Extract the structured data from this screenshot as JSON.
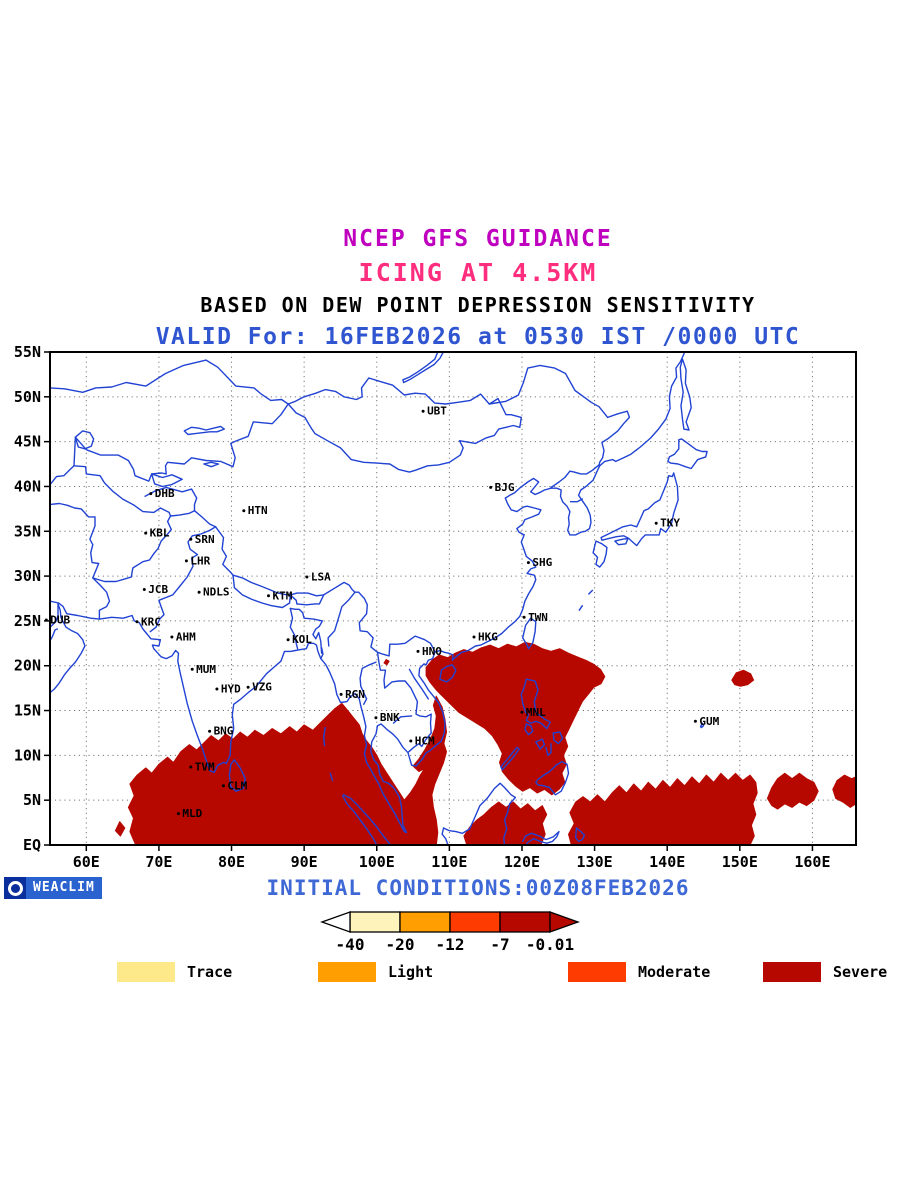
{
  "titles": {
    "line1": "NCEP GFS GUIDANCE",
    "line2": "ICING AT 4.5KM",
    "line3": "BASED ON DEW POINT DEPRESSION SENSITIVITY",
    "line4": "VALID For: 16FEB2026 at 0530 IST /0000 UTC"
  },
  "colors": {
    "title1": "#bf00bf",
    "title2": "#ff2d7e",
    "title3": "#000000",
    "title4": "#2f55d0",
    "initial": "#3d68d6",
    "coast": "#2143d4",
    "severe": "#b70800",
    "grid": "#777777",
    "frame": "#000000",
    "weaclim_icon_bg": "#0a2f9c",
    "weaclim_body_bg": "#2a62d0"
  },
  "map": {
    "lat_ticks": [
      {
        "label": "55N",
        "value": 55
      },
      {
        "label": "50N",
        "value": 50
      },
      {
        "label": "45N",
        "value": 45
      },
      {
        "label": "40N",
        "value": 40
      },
      {
        "label": "35N",
        "value": 35
      },
      {
        "label": "30N",
        "value": 30
      },
      {
        "label": "25N",
        "value": 25
      },
      {
        "label": "20N",
        "value": 20
      },
      {
        "label": "15N",
        "value": 15
      },
      {
        "label": "10N",
        "value": 10
      },
      {
        "label": "5N",
        "value": 5
      },
      {
        "label": "EQ",
        "value": 0
      }
    ],
    "lon_ticks": [
      {
        "label": "60E",
        "value": 60
      },
      {
        "label": "70E",
        "value": 70
      },
      {
        "label": "80E",
        "value": 80
      },
      {
        "label": "90E",
        "value": 90
      },
      {
        "label": "100E",
        "value": 100
      },
      {
        "label": "110E",
        "value": 110
      },
      {
        "label": "120E",
        "value": 120
      },
      {
        "label": "130E",
        "value": 130
      },
      {
        "label": "140E",
        "value": 140
      },
      {
        "label": "150E",
        "value": 150
      },
      {
        "label": "160E",
        "value": 160
      }
    ],
    "stations": [
      {
        "code": "UBT",
        "lon": 108.3,
        "lat": 48.4
      },
      {
        "code": "BJG",
        "lon": 117.6,
        "lat": 39.9
      },
      {
        "code": "TKY",
        "lon": 140.4,
        "lat": 35.9
      },
      {
        "code": "DHB",
        "lon": 70.8,
        "lat": 39.2
      },
      {
        "code": "HTN",
        "lon": 83.6,
        "lat": 37.3
      },
      {
        "code": "KBL",
        "lon": 70.1,
        "lat": 34.8
      },
      {
        "code": "SRN",
        "lon": 76.3,
        "lat": 34.1
      },
      {
        "code": "LHR",
        "lon": 75.7,
        "lat": 31.7
      },
      {
        "code": "SHG",
        "lon": 122.8,
        "lat": 31.5
      },
      {
        "code": "JCB",
        "lon": 69.9,
        "lat": 28.5
      },
      {
        "code": "NDLS",
        "lon": 77.9,
        "lat": 28.2
      },
      {
        "code": "KTM",
        "lon": 87.0,
        "lat": 27.8
      },
      {
        "code": "LSA",
        "lon": 92.3,
        "lat": 29.9
      },
      {
        "code": "DUB",
        "lon": 56.4,
        "lat": 25.1
      },
      {
        "code": "KRC",
        "lon": 68.9,
        "lat": 24.9
      },
      {
        "code": "TWN",
        "lon": 122.2,
        "lat": 25.4
      },
      {
        "code": "AHM",
        "lon": 73.7,
        "lat": 23.2
      },
      {
        "code": "KOL",
        "lon": 89.7,
        "lat": 22.9
      },
      {
        "code": "HKG",
        "lon": 115.3,
        "lat": 23.2
      },
      {
        "code": "HNO",
        "lon": 107.6,
        "lat": 21.6
      },
      {
        "code": "MUM",
        "lon": 76.5,
        "lat": 19.6
      },
      {
        "code": "HYD",
        "lon": 79.9,
        "lat": 17.4
      },
      {
        "code": "VZG",
        "lon": 84.2,
        "lat": 17.6
      },
      {
        "code": "RGN",
        "lon": 97.0,
        "lat": 16.8
      },
      {
        "code": "BNK",
        "lon": 101.8,
        "lat": 14.2
      },
      {
        "code": "MNL",
        "lon": 121.9,
        "lat": 14.8
      },
      {
        "code": "GUM",
        "lon": 145.8,
        "lat": 13.8
      },
      {
        "code": "HCM",
        "lon": 106.6,
        "lat": 11.6
      },
      {
        "code": "BNG",
        "lon": 78.9,
        "lat": 12.7
      },
      {
        "code": "TVM",
        "lon": 76.3,
        "lat": 8.7
      },
      {
        "code": "CLM",
        "lon": 80.8,
        "lat": 6.6
      },
      {
        "code": "MLD",
        "lon": 74.6,
        "lat": 3.5
      }
    ]
  },
  "colorbar": {
    "tick_labels": [
      "-40",
      "-20",
      "-12",
      "-7",
      "-0.01"
    ],
    "segment_colors": [
      "#fdf3bb",
      "#ff9e00",
      "#fe3b00",
      "#b70800"
    ]
  },
  "legend": [
    {
      "label": "Trace",
      "color": "#fde98a"
    },
    {
      "label": "Light",
      "color": "#ff9e00"
    },
    {
      "label": "Moderate",
      "color": "#fe3b00"
    },
    {
      "label": "Severe",
      "color": "#b70800"
    }
  ],
  "footer": {
    "logo_text": "WEACLIM",
    "initial_conditions": "INITIAL CONDITIONS:00Z08FEB2026"
  },
  "icing_regions": {
    "severe": [
      [
        [
          66.8,
          0
        ],
        [
          66,
          1.5
        ],
        [
          66.5,
          3
        ],
        [
          65.8,
          4.2
        ],
        [
          66.6,
          5.5
        ],
        [
          66,
          6.8
        ],
        [
          67,
          7.8
        ],
        [
          68.2,
          8.6
        ],
        [
          69,
          8
        ],
        [
          70,
          9
        ],
        [
          71.2,
          9.8
        ],
        [
          72,
          9.2
        ],
        [
          73,
          10.4
        ],
        [
          74.2,
          11.2
        ],
        [
          75.2,
          10.6
        ],
        [
          76.2,
          11.4
        ],
        [
          77.2,
          12.2
        ],
        [
          78.2,
          11.6
        ],
        [
          79.2,
          12.4
        ],
        [
          80.2,
          11.8
        ],
        [
          81.2,
          12.6
        ],
        [
          82.2,
          12
        ],
        [
          83.2,
          12.8
        ],
        [
          84.4,
          12.2
        ],
        [
          85.6,
          13
        ],
        [
          86.8,
          12.4
        ],
        [
          88,
          13.2
        ],
        [
          89,
          12.6
        ],
        [
          90,
          13.4
        ],
        [
          91.2,
          12.8
        ],
        [
          92.2,
          13.6
        ],
        [
          93.2,
          14.4
        ],
        [
          94.2,
          15.2
        ],
        [
          95.2,
          15.8
        ],
        [
          96,
          15
        ],
        [
          96.8,
          14.2
        ],
        [
          97.6,
          13.4
        ],
        [
          98,
          12.4
        ],
        [
          98.6,
          11.6
        ],
        [
          99.4,
          10.8
        ],
        [
          100,
          10
        ],
        [
          100.6,
          9
        ],
        [
          101.4,
          8
        ],
        [
          102.2,
          7
        ],
        [
          103,
          6
        ],
        [
          103.8,
          5
        ],
        [
          104.6,
          5.8
        ],
        [
          105.4,
          6.8
        ],
        [
          106,
          7.8
        ],
        [
          106.8,
          8.8
        ],
        [
          107.6,
          9.6
        ],
        [
          108.4,
          10.4
        ],
        [
          109.2,
          11.4
        ],
        [
          109.6,
          10.4
        ],
        [
          109.2,
          9.2
        ],
        [
          108.6,
          8
        ],
        [
          108,
          6.8
        ],
        [
          107.6,
          5.6
        ],
        [
          107.8,
          4.2
        ],
        [
          108.2,
          2.8
        ],
        [
          108.4,
          1.4
        ],
        [
          108.2,
          0
        ]
      ],
      [
        [
          106.8,
          19.8
        ],
        [
          107.6,
          20.6
        ],
        [
          108.6,
          21.2
        ],
        [
          109.8,
          20.9
        ],
        [
          110.8,
          21.4
        ],
        [
          112,
          21.8
        ],
        [
          113.2,
          21.5
        ],
        [
          114.4,
          22
        ],
        [
          115.6,
          22.3
        ],
        [
          116.8,
          21.9
        ],
        [
          118,
          22.4
        ],
        [
          119.2,
          22.1
        ],
        [
          120.4,
          22.6
        ],
        [
          121.6,
          22.4
        ],
        [
          122.8,
          21.9
        ],
        [
          124,
          21.6
        ],
        [
          125.2,
          21.9
        ],
        [
          126.4,
          21.4
        ],
        [
          127.6,
          21
        ],
        [
          128.8,
          20.6
        ],
        [
          129.8,
          20.2
        ],
        [
          130.8,
          19.6
        ],
        [
          131.4,
          18.8
        ],
        [
          130.9,
          18
        ],
        [
          129.9,
          17.6
        ],
        [
          129.1,
          16.8
        ],
        [
          128.3,
          16
        ],
        [
          127.7,
          15
        ],
        [
          127.1,
          14
        ],
        [
          126.5,
          13
        ],
        [
          125.9,
          12
        ],
        [
          126.3,
          11
        ],
        [
          125.7,
          10
        ],
        [
          126.1,
          9
        ],
        [
          125.5,
          8
        ],
        [
          125.9,
          7
        ],
        [
          125.1,
          6.2
        ],
        [
          124.1,
          5.6
        ],
        [
          123.1,
          6.2
        ],
        [
          122.1,
          5.8
        ],
        [
          121.1,
          6.4
        ],
        [
          120.1,
          6
        ],
        [
          119.1,
          6.6
        ],
        [
          118.1,
          7.4
        ],
        [
          117.3,
          8.2
        ],
        [
          116.9,
          9.2
        ],
        [
          117.3,
          10.2
        ],
        [
          116.7,
          11.2
        ],
        [
          115.9,
          12.2
        ],
        [
          114.9,
          13
        ],
        [
          113.7,
          13.6
        ],
        [
          112.5,
          14.2
        ],
        [
          111.3,
          14.8
        ],
        [
          110.3,
          15.6
        ],
        [
          109.3,
          16.4
        ],
        [
          108.3,
          17.2
        ],
        [
          107.3,
          18.2
        ],
        [
          106.8,
          18.9
        ]
      ],
      [
        [
          108.2,
          16.6
        ],
        [
          109,
          15.4
        ],
        [
          109.4,
          14
        ],
        [
          109.6,
          12.6
        ],
        [
          109.2,
          11.2
        ],
        [
          108.4,
          10.2
        ],
        [
          107.6,
          9.4
        ],
        [
          106.8,
          8.6
        ],
        [
          105.8,
          8.2
        ],
        [
          105,
          8.8
        ],
        [
          105.8,
          9.6
        ],
        [
          106.6,
          10.6
        ],
        [
          107.4,
          11.8
        ],
        [
          108,
          13
        ],
        [
          108.2,
          14.4
        ],
        [
          107.8,
          15.6
        ]
      ],
      [
        [
          126.8,
          0
        ],
        [
          126.4,
          1.2
        ],
        [
          127.2,
          2.4
        ],
        [
          126.6,
          3.6
        ],
        [
          127.4,
          4.8
        ],
        [
          128.4,
          5.4
        ],
        [
          129.4,
          4.8
        ],
        [
          130.4,
          5.6
        ],
        [
          131.4,
          4.8
        ],
        [
          132.4,
          5.8
        ],
        [
          133.4,
          6.6
        ],
        [
          134.4,
          5.8
        ],
        [
          135.4,
          6.8
        ],
        [
          136.4,
          6
        ],
        [
          137.4,
          7
        ],
        [
          138.4,
          6.2
        ],
        [
          139.4,
          7.2
        ],
        [
          140.4,
          6.4
        ],
        [
          141.4,
          7.4
        ],
        [
          142.4,
          6.6
        ],
        [
          143.4,
          7.6
        ],
        [
          144.4,
          6.8
        ],
        [
          145.4,
          7.8
        ],
        [
          146.4,
          7
        ],
        [
          147.4,
          8
        ],
        [
          148.4,
          7.2
        ],
        [
          149.4,
          8
        ],
        [
          150.4,
          7.2
        ],
        [
          151.4,
          7.8
        ],
        [
          152.2,
          7
        ],
        [
          152.4,
          5.8
        ],
        [
          151.8,
          4.6
        ],
        [
          152.2,
          3.4
        ],
        [
          151.6,
          2.2
        ],
        [
          152,
          1
        ],
        [
          151.4,
          0
        ]
      ],
      [
        [
          153.8,
          5.2
        ],
        [
          154.4,
          6.4
        ],
        [
          155.2,
          7.4
        ],
        [
          156.2,
          8
        ],
        [
          157.2,
          7.4
        ],
        [
          158.2,
          8
        ],
        [
          159.2,
          7.4
        ],
        [
          160.2,
          7
        ],
        [
          160.8,
          6
        ],
        [
          160.2,
          5
        ],
        [
          159.2,
          4.4
        ],
        [
          158.2,
          4.8
        ],
        [
          157.2,
          4.2
        ],
        [
          156.2,
          4.6
        ],
        [
          155.2,
          4
        ],
        [
          154.4,
          4.4
        ]
      ],
      [
        [
          162.8,
          6.2
        ],
        [
          163.4,
          7.2
        ],
        [
          164.4,
          7.8
        ],
        [
          165.4,
          7.4
        ],
        [
          166,
          7.6
        ],
        [
          166,
          4.6
        ],
        [
          165.2,
          4.2
        ],
        [
          164.2,
          4.8
        ],
        [
          163.2,
          5.2
        ]
      ],
      [
        [
          148.9,
          18.4
        ],
        [
          149.5,
          19.2
        ],
        [
          150.5,
          19.5
        ],
        [
          151.5,
          19.1
        ],
        [
          151.9,
          18.4
        ],
        [
          151.1,
          17.9
        ],
        [
          150.1,
          17.7
        ],
        [
          149.3,
          17.9
        ]
      ],
      [
        [
          101,
          20.3
        ],
        [
          101.3,
          20.7
        ],
        [
          101.7,
          20.5
        ],
        [
          101.4,
          20.1
        ]
      ],
      [
        [
          112.4,
          0
        ],
        [
          112,
          1
        ],
        [
          112.8,
          2
        ],
        [
          113.8,
          2.8
        ],
        [
          114.8,
          3.4
        ],
        [
          115.8,
          4.2
        ],
        [
          116.8,
          4.8
        ],
        [
          117.8,
          4.2
        ],
        [
          118.8,
          4.8
        ],
        [
          119.8,
          4
        ],
        [
          120.8,
          4.6
        ],
        [
          121.8,
          3.8
        ],
        [
          122.8,
          4.4
        ],
        [
          123.4,
          3.4
        ],
        [
          122.8,
          2.4
        ],
        [
          123.2,
          1.2
        ],
        [
          122.6,
          0
        ]
      ],
      [
        [
          64,
          1.6
        ],
        [
          64.6,
          2.6
        ],
        [
          65.3,
          1.9
        ],
        [
          64.7,
          1
        ]
      ]
    ]
  }
}
